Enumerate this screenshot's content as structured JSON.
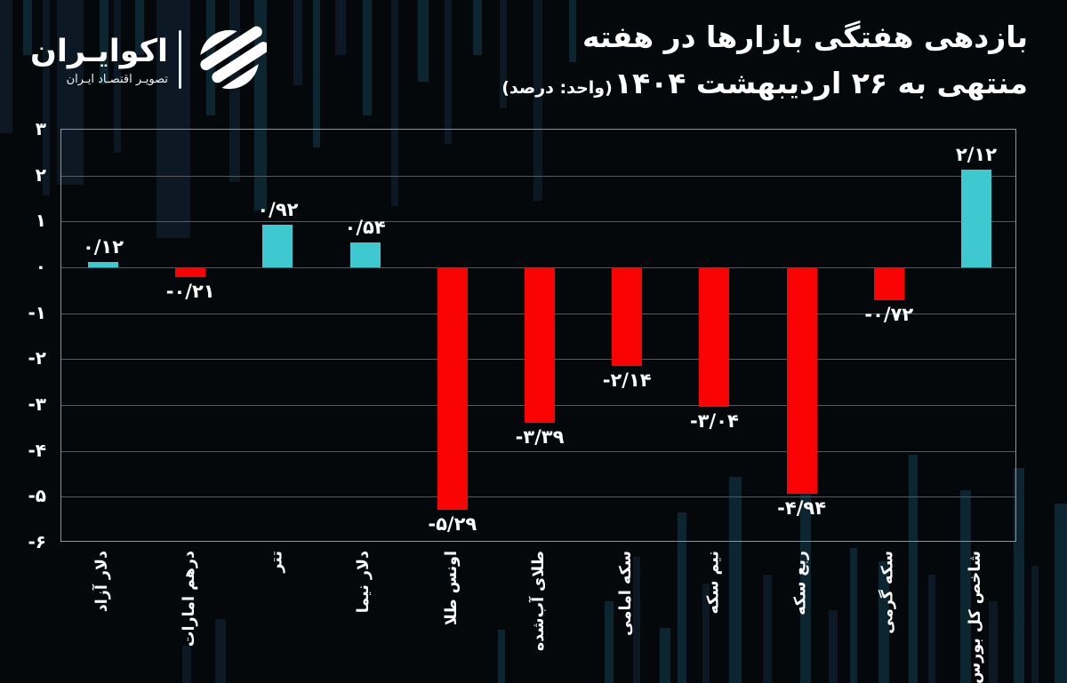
{
  "brand": {
    "name": "اکوایـران",
    "tagline": "تصویـر اقتصـاد ایـران"
  },
  "title": {
    "line1": "بازدهی هفتگی بازارها در هفته",
    "line2": "منتهی به ۲۶ اردیبهشت ۱۴۰۴",
    "unit_note": "(واحد: درصد)"
  },
  "colors": {
    "positive_bar": "#3ec9d1",
    "negative_bar": "#fa0305",
    "background": "#05080b",
    "grid_line": "#545a5d",
    "axis_spine": "#8e9497",
    "text": "#ffffff"
  },
  "chart_data": {
    "type": "bar",
    "title": "بازدهی هفتگی بازارها در هفته منتهی به ۲۶ اردیبهشت ۱۴۰۴",
    "unit": "درصد",
    "categories": [
      "دلار آزاد",
      "درهم امارات",
      "تتر",
      "دلار نیما",
      "اونس طلا",
      "طلای آب‌شده",
      "سکه امامی",
      "نیم سکه",
      "ربع سکه",
      "سکه گرمی",
      "شاخص کل بورس"
    ],
    "values": [
      0.12,
      -0.21,
      0.92,
      0.54,
      -5.29,
      -3.39,
      -2.14,
      -3.04,
      -4.94,
      -0.72,
      2.12
    ],
    "value_labels": [
      "۰/۱۲",
      "-۰/۲۱",
      "۰/۹۲",
      "۰/۵۴",
      "-۵/۲۹",
      "-۳/۳۹",
      "-۲/۱۴",
      "-۳/۰۴",
      "-۴/۹۴",
      "-۰/۷۲",
      "۲/۱۲"
    ],
    "y_ticks": [
      3,
      2,
      1,
      0,
      -1,
      -2,
      -3,
      -4,
      -5,
      -6
    ],
    "y_tick_labels": [
      "۳",
      "۲",
      "۱",
      "۰",
      "-۱",
      "-۲",
      "-۳",
      "-۴",
      "-۵",
      "-۶"
    ],
    "ylim": [
      -6,
      3
    ],
    "grid": true,
    "legend": false,
    "bar_orientation": "vertical"
  }
}
